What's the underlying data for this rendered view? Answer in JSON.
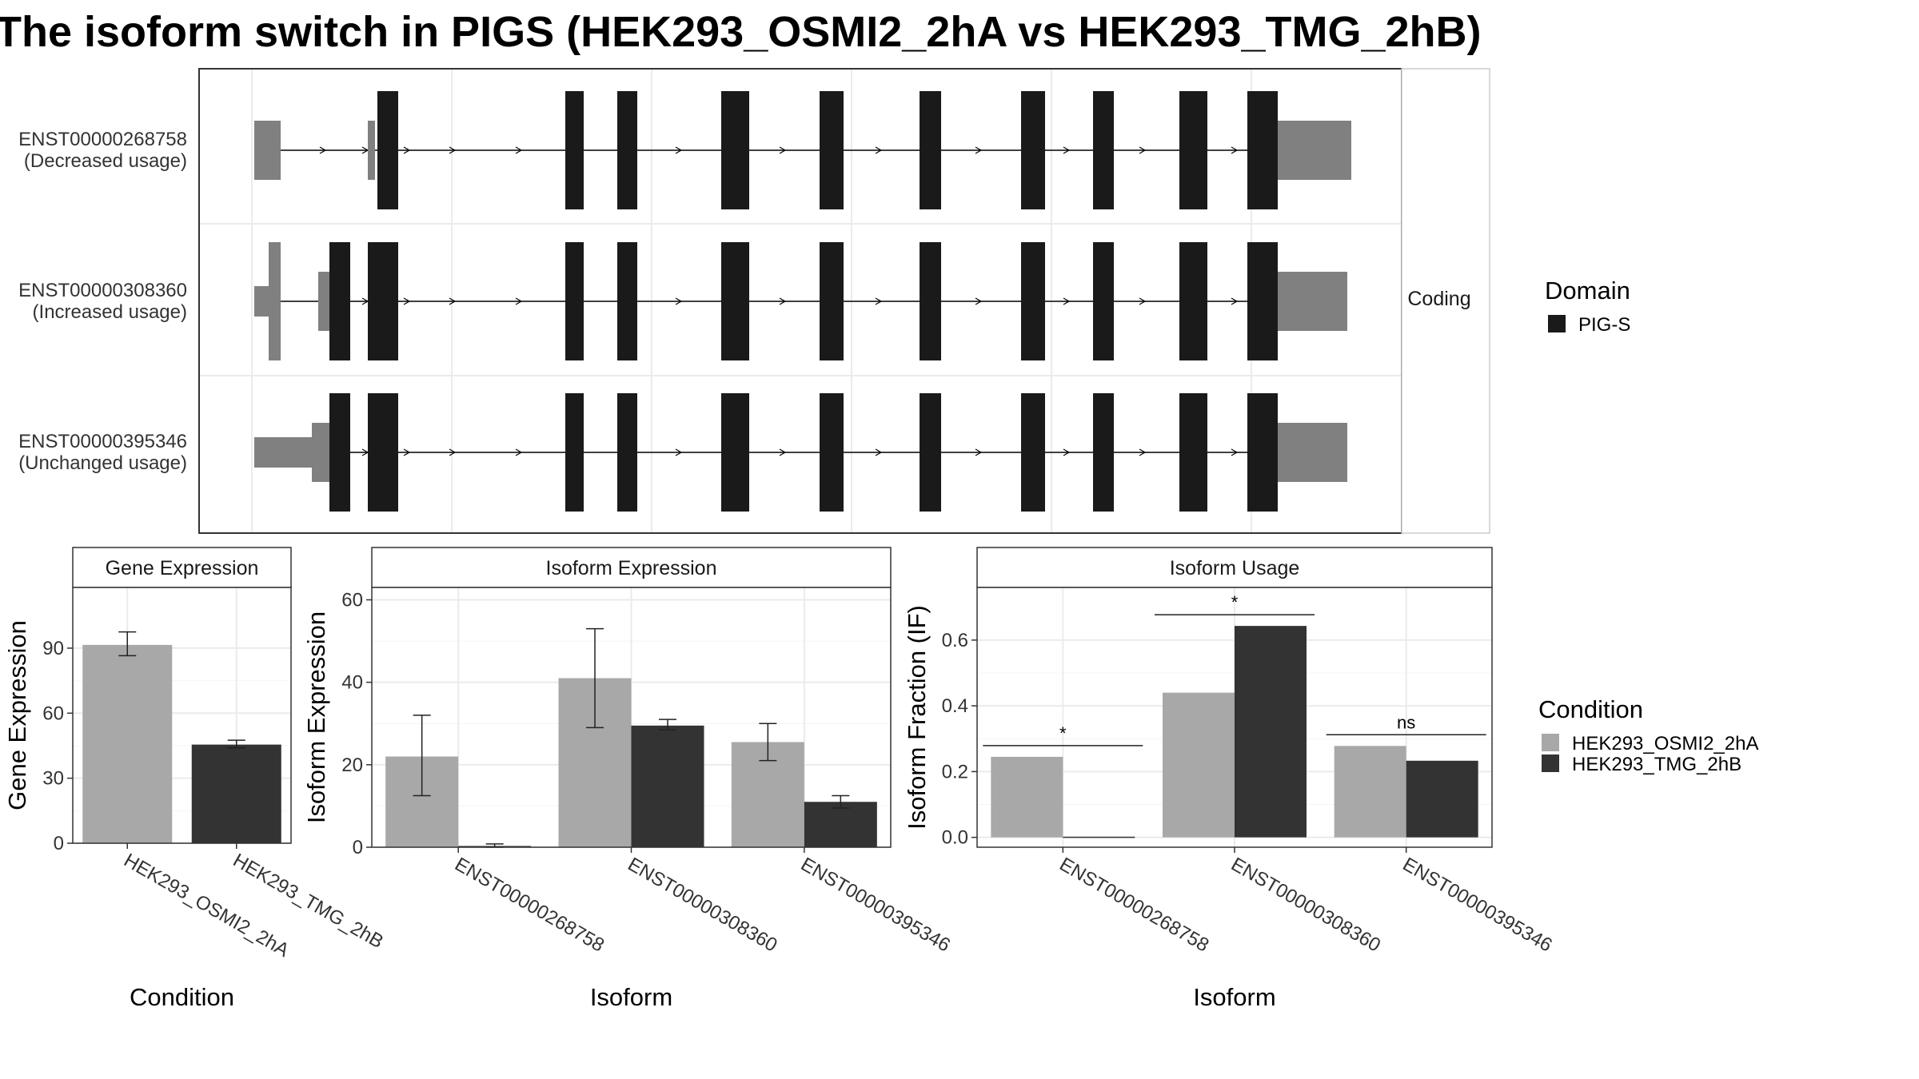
{
  "title": "The isoform switch in PIGS (HEK293_OSMI2_2hA vs HEK293_TMG_2hB)",
  "colors": {
    "cond_a": "#a8a8a8",
    "cond_b": "#333333",
    "domain": "#1a1a1a",
    "utr": "#808080"
  },
  "chart_data": [
    {
      "type": "gene-structure",
      "strip_label": "Coding",
      "isoforms": [
        {
          "id": "ENST00000268758",
          "usage": "(Decreased usage)"
        },
        {
          "id": "ENST00000308360",
          "usage": "(Increased usage)"
        },
        {
          "id": "ENST00000395346",
          "usage": "(Unchanged usage)"
        }
      ],
      "legend": {
        "title": "Domain",
        "items": [
          "PIG-S"
        ]
      }
    },
    {
      "type": "bar",
      "title": "Gene Expression",
      "xlabel": "Condition",
      "ylabel": "Gene Expression",
      "ylim": [
        0,
        118
      ],
      "yticks": [
        0,
        30,
        60,
        90
      ],
      "categories": [
        "HEK293_OSMI2_2hA",
        "HEK293_TMG_2hB"
      ],
      "values": [
        91.5,
        45.5
      ],
      "errors": [
        [
          86.5,
          97.5
        ],
        [
          44,
          47.5
        ]
      ]
    },
    {
      "type": "bar",
      "title": "Isoform Expression",
      "xlabel": "Isoform",
      "ylabel": "Isoform Expression",
      "ylim": [
        0,
        63
      ],
      "yticks": [
        0,
        20,
        40,
        60
      ],
      "categories": [
        "ENST00000268758",
        "ENST00000308360",
        "ENST00000395346"
      ],
      "series": [
        {
          "name": "HEK293_OSMI2_2hA",
          "values": [
            22,
            41,
            25.5
          ],
          "errors": [
            [
              12.5,
              32
            ],
            [
              29,
              53
            ],
            [
              21,
              30
            ]
          ]
        },
        {
          "name": "HEK293_TMG_2hB",
          "values": [
            0.3,
            29.5,
            11
          ],
          "errors": [
            [
              0,
              0.8
            ],
            [
              28.5,
              31
            ],
            [
              9.5,
              12.5
            ]
          ]
        }
      ]
    },
    {
      "type": "bar",
      "title": "Isoform Usage",
      "xlabel": "Isoform",
      "ylabel": "Isoform Fraction (IF)",
      "ylim": [
        -0.03,
        0.76
      ],
      "yticks": [
        "0.0",
        "0.2",
        "0.4",
        "0.6"
      ],
      "categories": [
        "ENST00000268758",
        "ENST00000308360",
        "ENST00000395346"
      ],
      "series": [
        {
          "name": "HEK293_OSMI2_2hA",
          "values": [
            0.245,
            0.44,
            0.278
          ]
        },
        {
          "name": "HEK293_TMG_2hB",
          "values": [
            0.002,
            0.643,
            0.233
          ]
        }
      ],
      "significance": [
        "*",
        "*",
        "ns"
      ]
    }
  ],
  "condition_legend": {
    "title": "Condition",
    "items": [
      "HEK293_OSMI2_2hA",
      "HEK293_TMG_2hB"
    ]
  }
}
